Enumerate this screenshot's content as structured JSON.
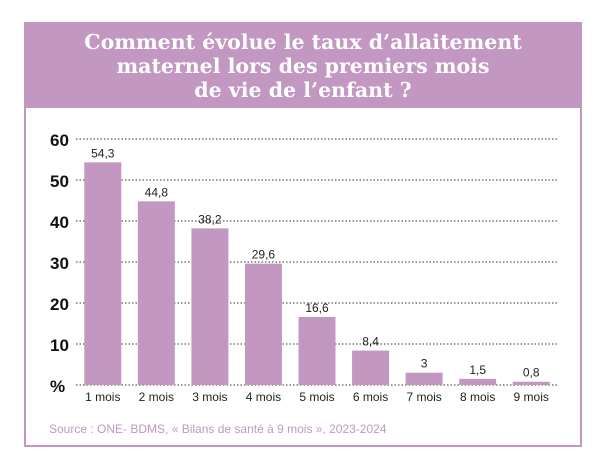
{
  "chart_data": {
    "type": "bar",
    "title": "Comment évolue le taux d’allaitement\nmaternel lors des premiers mois\nde vie de l’enfant ?",
    "categories": [
      "1 mois",
      "2 mois",
      "3 mois",
      "4 mois",
      "5 mois",
      "6 mois",
      "7 mois",
      "8 mois",
      "9 mois"
    ],
    "values": [
      54.3,
      44.8,
      38.2,
      29.6,
      16.6,
      8.4,
      3,
      1.5,
      0.8
    ],
    "value_labels": [
      "54,3",
      "44,8",
      "38,2",
      "29,6",
      "16,6",
      "8,4",
      "3",
      "1,5",
      "0,8"
    ],
    "yticks": [
      0,
      10,
      20,
      30,
      40,
      50,
      60
    ],
    "ytick_labels": [
      "%",
      "10",
      "20",
      "30",
      "40",
      "50",
      "60"
    ],
    "ylim": [
      0,
      60
    ],
    "grid": true,
    "bar_color": "#c297c2",
    "grid_color": "#333333"
  },
  "source": "Source : ONE- BDMS, « Bilans de santé à 9 mois », 2023-2024",
  "colors": {
    "accent": "#c297c2",
    "title_text": "#ffffff"
  }
}
